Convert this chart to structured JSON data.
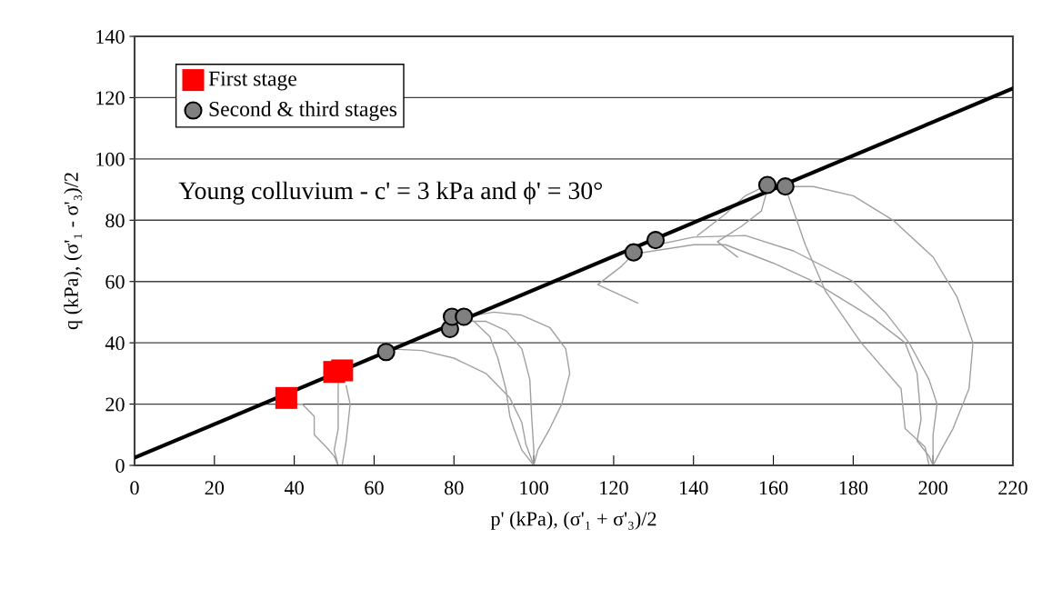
{
  "chart_data": {
    "type": "scatter",
    "xlabel": "p' (kPa), (σ'₁ + σ'₃)/2",
    "ylabel": "q (kPa), (σ'₁ - σ'₃)/2",
    "xlim": [
      0,
      220
    ],
    "ylim": [
      0,
      140
    ],
    "xticks": [
      0,
      20,
      40,
      60,
      80,
      100,
      120,
      140,
      160,
      180,
      200,
      220
    ],
    "yticks": [
      0,
      20,
      40,
      60,
      80,
      100,
      120,
      140
    ],
    "grid": "y",
    "legend": "top left",
    "annotations": [
      "Young colluvium - c' = 3 kPa and ϕ' = 30°"
    ],
    "series": [
      {
        "type": "line",
        "color": "#a0a0a0",
        "x": [
          41,
          42,
          45,
          45,
          48,
          50,
          51
        ],
        "values": [
          20,
          20,
          16,
          10,
          6,
          3,
          0
        ]
      },
      {
        "type": "line",
        "color": "#a0a0a0",
        "x": [
          51,
          50,
          51,
          51,
          51
        ],
        "values": [
          0,
          5,
          12,
          20,
          28
        ]
      },
      {
        "type": "line",
        "color": "#a0a0a0",
        "x": [
          52,
          53,
          54,
          53
        ],
        "values": [
          0,
          8,
          20,
          26
        ]
      },
      {
        "type": "line",
        "color": "#a0a0a0",
        "x": [
          83,
          90,
          97,
          104,
          108,
          109,
          107,
          104,
          101,
          100
        ],
        "values": [
          48.5,
          50,
          49,
          45,
          38,
          30,
          20,
          12,
          5,
          0
        ]
      },
      {
        "type": "line",
        "color": "#a0a0a0",
        "x": [
          82,
          88,
          93,
          97,
          99,
          99.5,
          100,
          100
        ],
        "values": [
          47,
          47,
          44,
          38,
          28,
          15,
          5,
          0
        ]
      },
      {
        "type": "line",
        "color": "#a0a0a0",
        "x": [
          79,
          85,
          89,
          91,
          93,
          94,
          95,
          97,
          100
        ],
        "values": [
          48,
          47,
          42,
          35,
          25,
          16,
          12,
          5,
          0
        ]
      },
      {
        "type": "line",
        "color": "#a0a0a0",
        "x": [
          64,
          72,
          80,
          88,
          94,
          97,
          98,
          100
        ],
        "values": [
          38,
          37.5,
          35,
          30,
          22,
          14,
          7,
          0
        ]
      },
      {
        "type": "line",
        "color": "#a0a0a0",
        "x": [
          163,
          170,
          180,
          190,
          200,
          206,
          210,
          209,
          205,
          202,
          200
        ],
        "values": [
          91,
          91,
          88,
          80,
          68,
          55,
          40,
          25,
          12,
          5,
          0
        ]
      },
      {
        "type": "line",
        "color": "#a0a0a0",
        "x": [
          131,
          140,
          153,
          165,
          180,
          188,
          194,
          199,
          201,
          200,
          200
        ],
        "values": [
          72,
          74.5,
          75,
          70,
          60,
          50,
          40,
          28,
          20,
          10,
          0
        ]
      },
      {
        "type": "line",
        "color": "#a0a0a0",
        "x": [
          125,
          140,
          148,
          160,
          170,
          185,
          193,
          196,
          197,
          196,
          199,
          200
        ],
        "values": [
          69,
          72,
          72,
          66,
          60,
          48,
          40,
          30,
          15,
          8,
          3,
          0
        ]
      },
      {
        "type": "line",
        "color": "#a0a0a0",
        "x": [
          163,
          164,
          168,
          173,
          182,
          192,
          193,
          198,
          199
        ],
        "values": [
          91,
          87,
          72,
          57,
          40,
          25,
          12,
          6,
          0
        ]
      },
      {
        "type": "line",
        "color": "#a0a0a0",
        "x": [
          126,
          116,
          122,
          125
        ],
        "values": [
          53,
          59,
          65,
          69
        ]
      },
      {
        "type": "line",
        "color": "#a0a0a0",
        "x": [
          141,
          148,
          153,
          158.5
        ],
        "values": [
          75,
          82,
          88,
          91.5
        ]
      },
      {
        "type": "line",
        "color": "#a0a0a0",
        "x": [
          151,
          146,
          152,
          157,
          158.5
        ],
        "values": [
          68,
          73,
          78,
          83,
          90
        ]
      },
      {
        "type": "line",
        "color": "#000000",
        "x": [
          0,
          220
        ],
        "values": [
          2.5,
          123
        ]
      },
      {
        "name": "First stage",
        "color": "#ff0000",
        "marker": "square",
        "x": [
          38,
          50,
          52
        ],
        "values": [
          22,
          30.5,
          31
        ]
      },
      {
        "name": "Second & third stages",
        "color": "#808080",
        "marker": "circle",
        "x": [
          63,
          79,
          79.5,
          82.5,
          125,
          130.5,
          158.5,
          163
        ],
        "values": [
          37,
          44.5,
          48.5,
          48.5,
          69.5,
          73.5,
          91.5,
          91
        ]
      }
    ]
  }
}
